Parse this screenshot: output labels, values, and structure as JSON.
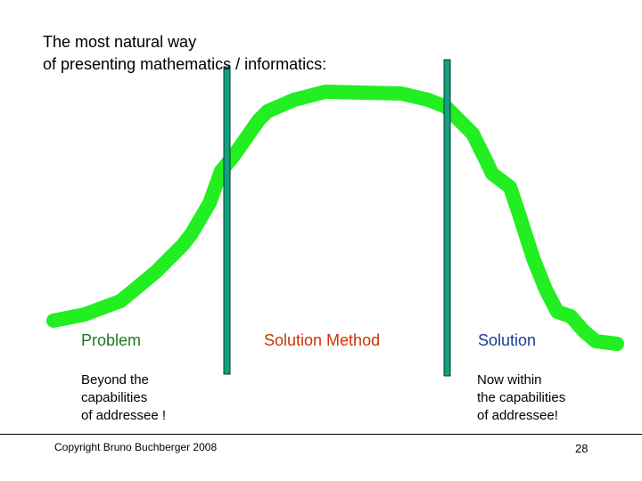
{
  "slide": {
    "title_line_1": "The most natural way",
    "title_line_2": "of presenting mathematics / informatics:",
    "labels": {
      "problem": "Problem",
      "method": "Solution Method",
      "solution": "Solution"
    },
    "notes": {
      "left": [
        "Beyond the",
        "capabilities",
        "of addressee !"
      ],
      "right": [
        "Now within",
        "the capabilities",
        "of addressee!"
      ]
    },
    "copyright": "Copyright Bruno Buchberger 2008",
    "page_number": "28"
  },
  "colors": {
    "curve": "#22ee22",
    "bar_fill": "#11a080",
    "bar_stroke": "#0b3b2b",
    "problem_label": "#1e7a1e",
    "method_label": "#cc3300",
    "solution_label": "#1a3a9a"
  }
}
